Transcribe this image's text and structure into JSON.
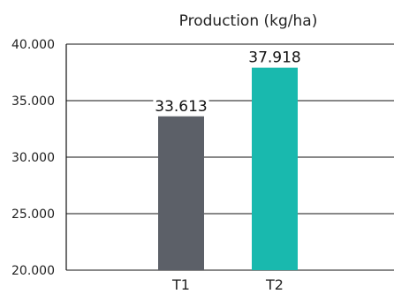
{
  "chart_data": {
    "type": "bar",
    "title": "Production (kg/ha)",
    "xlabel": "",
    "ylabel": "",
    "categories": [
      "T1",
      "T2"
    ],
    "values": [
      33613,
      37918
    ],
    "value_labels": [
      "33.613",
      "37.918"
    ],
    "colors": [
      "#5c6068",
      "#19b9ae"
    ],
    "ylim": [
      20000,
      40000
    ],
    "yticks": [
      20000,
      25000,
      30000,
      35000,
      40000
    ],
    "ytick_labels": [
      "20.000",
      "25.000",
      "30.000",
      "35.000",
      "40.000"
    ],
    "grid": true,
    "legend": "none"
  }
}
